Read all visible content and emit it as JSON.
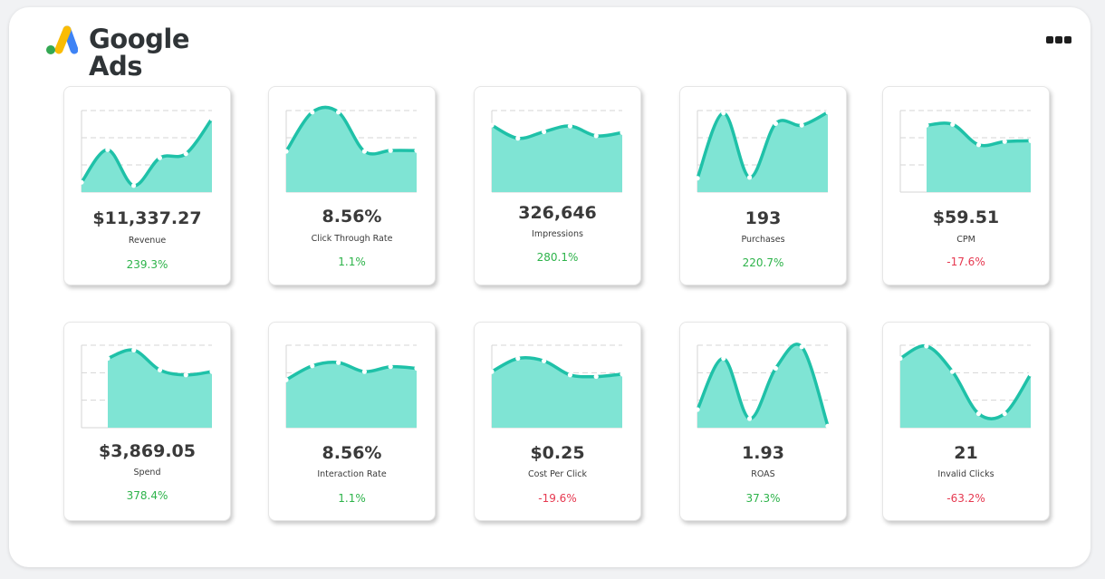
{
  "brand": {
    "name_line1": "Google",
    "name_line2": "Ads",
    "colors": {
      "blue": "#3e83f5",
      "yellow": "#fabc04",
      "green": "#34a853"
    }
  },
  "header": {
    "more_icon": "more-horizontal-icon"
  },
  "chart_style": {
    "area_color": "#7fe4d4",
    "line_color": "#1fc1a8",
    "point_color": "#ffffff",
    "grid_color": "#d5d5d5"
  },
  "metrics": [
    {
      "id": "revenue",
      "value": "$11,337.27",
      "label": "Revenue",
      "change": "239.3%",
      "direction": "up",
      "series": [
        0.12,
        0.52,
        0.08,
        0.42,
        0.47,
        0.9
      ]
    },
    {
      "id": "ctr",
      "value": "8.56%",
      "label": "Click Through Rate",
      "change": "1.1%",
      "direction": "up",
      "series": [
        0.5,
        0.98,
        0.98,
        0.5,
        0.51,
        0.51
      ]
    },
    {
      "id": "impressions",
      "value": "326,646",
      "label": "Impressions",
      "change": "280.1%",
      "direction": "up",
      "series": [
        0.82,
        0.66,
        0.74,
        0.81,
        0.69,
        0.73
      ]
    },
    {
      "id": "purchases",
      "value": "193",
      "label": "Purchases",
      "change": "220.7%",
      "direction": "up",
      "series": [
        0.17,
        0.97,
        0.18,
        0.84,
        0.82,
        0.98
      ]
    },
    {
      "id": "cpm",
      "value": "$59.51",
      "label": "CPM",
      "change": "-17.6%",
      "direction": "down",
      "series": [
        0.82,
        0.83,
        0.58,
        0.62,
        0.63
      ]
    },
    {
      "id": "spend",
      "value": "$3,869.05",
      "label": "Spend",
      "change": "378.4%",
      "direction": "up",
      "series": [
        0.84,
        0.94,
        0.7,
        0.64,
        0.68
      ]
    },
    {
      "id": "interaction_rate",
      "value": "8.56%",
      "label": "Interaction Rate",
      "change": "1.1%",
      "direction": "up",
      "series": [
        0.58,
        0.75,
        0.79,
        0.68,
        0.74,
        0.72
      ]
    },
    {
      "id": "cost_per_click",
      "value": "$0.25",
      "label": "Cost Per Click",
      "change": "-19.6%",
      "direction": "down",
      "series": [
        0.68,
        0.84,
        0.81,
        0.64,
        0.62,
        0.65
      ]
    },
    {
      "id": "roas",
      "value": "1.93",
      "label": "ROAS",
      "change": "37.3%",
      "direction": "up",
      "series": [
        0.22,
        0.84,
        0.11,
        0.72,
        0.98,
        0.02
      ]
    },
    {
      "id": "invalid_clicks",
      "value": "21",
      "label": "Invalid Clicks",
      "change": "-63.2%",
      "direction": "down",
      "series": [
        0.84,
        0.99,
        0.68,
        0.17,
        0.17,
        0.65
      ]
    }
  ]
}
